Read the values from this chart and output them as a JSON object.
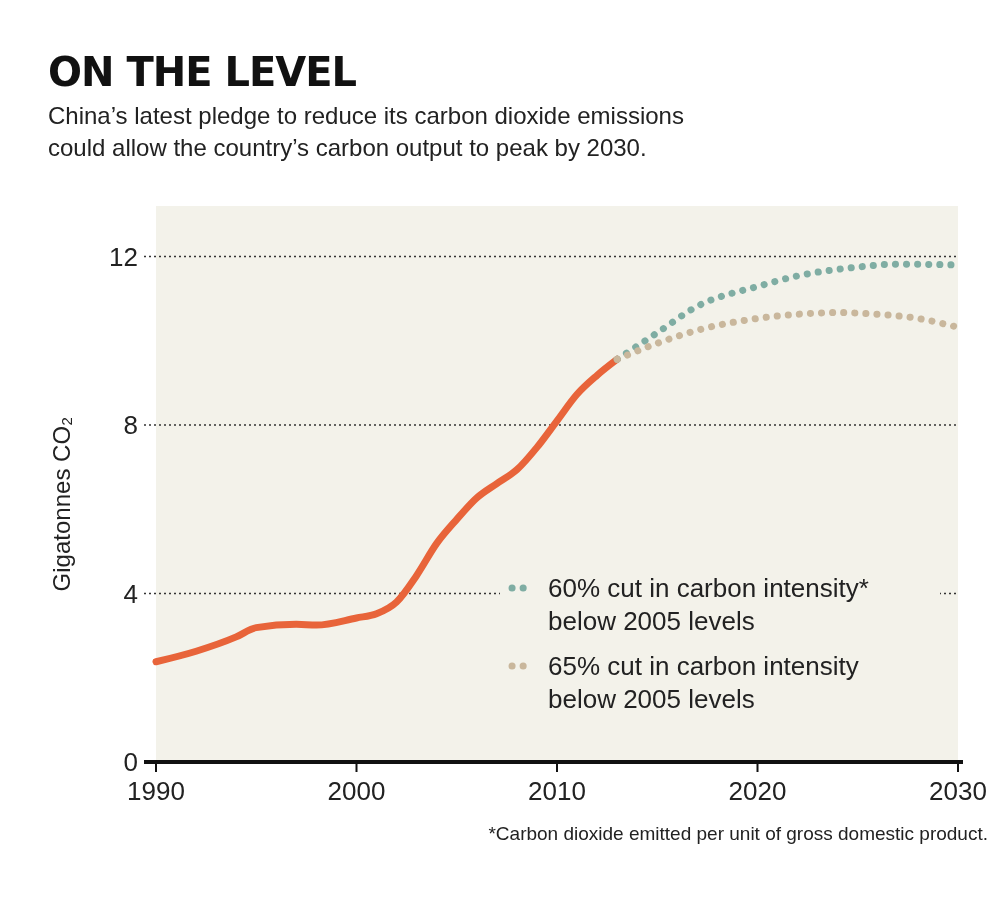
{
  "chart_data": {
    "type": "line",
    "title": "ON THE LEVEL",
    "subtitle": "China’s latest pledge to reduce its carbon dioxide emissions could allow the country’s carbon output to peak by 2030.",
    "ylabel": "Gigatonnes CO₂",
    "xlim": [
      1990,
      2030
    ],
    "xticks": [
      1990,
      2000,
      2010,
      2020,
      2030
    ],
    "ylim": [
      0,
      13.2
    ],
    "yticks": [
      0,
      4,
      8,
      12
    ],
    "grid": "y",
    "legend": "bottom right",
    "annotations": [
      "*Carbon dioxide emitted per unit of gross domestic product."
    ],
    "series": [
      {
        "color": "#e8643a",
        "line_style": "solid",
        "x": [
          1990,
          1992,
          1994,
          1995,
          1997,
          1998,
          2000,
          2001,
          2002,
          2003,
          2004,
          2005,
          2006,
          2007,
          2008,
          2009,
          2010,
          2011,
          2012,
          2013
        ],
        "values": [
          2.38,
          2.63,
          2.97,
          3.19,
          3.27,
          3.25,
          3.42,
          3.52,
          3.8,
          4.43,
          5.19,
          5.76,
          6.27,
          6.61,
          6.94,
          7.47,
          8.1,
          8.73,
          9.18,
          9.56
        ]
      },
      {
        "name": "60% cut in carbon intensity* below 2005 levels",
        "color": "#7fada3",
        "line_style": "dotted",
        "x": [
          2013,
          2015,
          2017,
          2020,
          2022,
          2025,
          2027,
          2030
        ],
        "values": [
          9.56,
          10.19,
          10.82,
          11.29,
          11.54,
          11.75,
          11.82,
          11.8
        ]
      },
      {
        "name": "65% cut in carbon intensity below 2005 levels",
        "color": "#c9b79c",
        "line_style": "dotted",
        "x": [
          2013,
          2015,
          2017,
          2020,
          2022,
          2024,
          2026,
          2028,
          2030
        ],
        "values": [
          9.56,
          9.94,
          10.25,
          10.53,
          10.63,
          10.67,
          10.63,
          10.53,
          10.32
        ]
      }
    ]
  }
}
